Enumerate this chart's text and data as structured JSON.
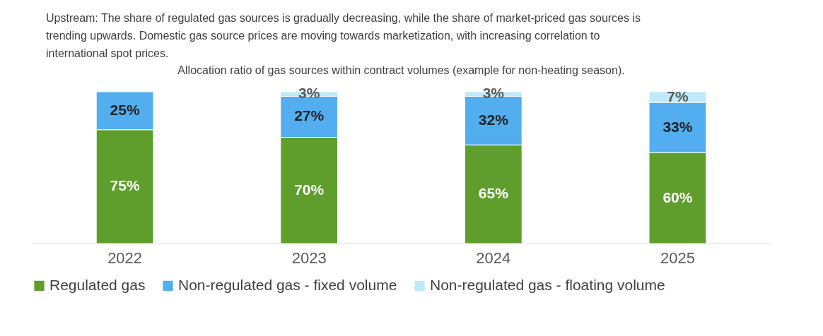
{
  "chart_data": {
    "type": "bar",
    "title": "Allocation ratio of gas sources within contract volumes (example for non-heating season).",
    "annotations": [
      "Upstream: The share of regulated gas sources is gradually decreasing, while the share of market-priced gas sources is trending upwards. Domestic gas source prices are moving towards marketization, with increasing correlation to international spot prices."
    ],
    "categories": [
      "2022",
      "2023",
      "2024",
      "2025"
    ],
    "series": [
      {
        "name": "Regulated gas",
        "color": "#5f9e2c",
        "values": [
          75,
          70,
          65,
          60
        ],
        "value_labels": [
          "75%",
          "70%",
          "65%",
          "60%"
        ]
      },
      {
        "name": "Non-regulated gas - fixed volume",
        "color": "#52aeef",
        "values": [
          25,
          27,
          32,
          33
        ],
        "value_labels": [
          "25%",
          "27%",
          "32%",
          "33%"
        ]
      },
      {
        "name": "Non-regulated gas - floating volume",
        "color": "#bde9f8",
        "values": [
          null,
          3,
          3,
          7
        ],
        "value_labels": [
          null,
          "3%",
          "3%",
          "7%"
        ]
      }
    ],
    "stacked": true,
    "legend": "bottom",
    "tick_labels": "x"
  }
}
